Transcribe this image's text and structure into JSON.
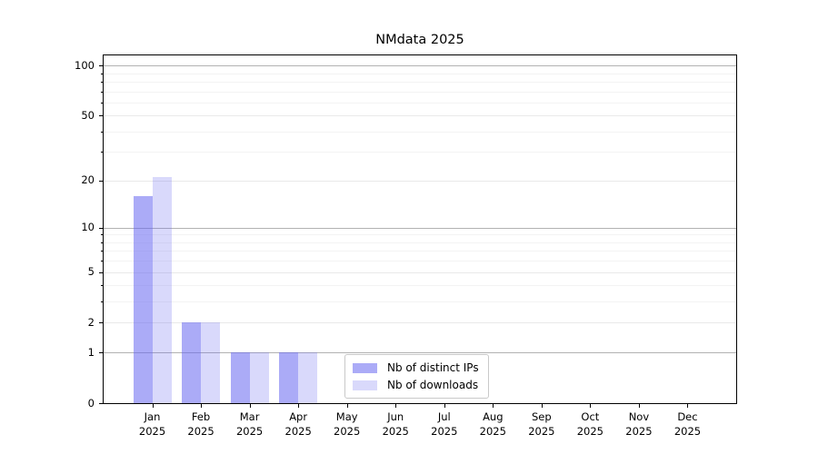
{
  "chart_data": {
    "type": "bar",
    "title": "NMdata 2025",
    "yscale": "log1p",
    "categories": [
      "Jan 2025",
      "Feb 2025",
      "Mar 2025",
      "Apr 2025",
      "May 2025",
      "Jun 2025",
      "Jul 2025",
      "Aug 2025",
      "Sep 2025",
      "Oct 2025",
      "Nov 2025",
      "Dec 2025"
    ],
    "month_labels": [
      "Jan",
      "Feb",
      "Mar",
      "Apr",
      "May",
      "Jun",
      "Jul",
      "Aug",
      "Sep",
      "Oct",
      "Nov",
      "Dec"
    ],
    "year_label": "2025",
    "series": [
      {
        "name": "Nb of distinct IPs",
        "color": "#abaBf1",
        "fill": "rgba(102,102,240,0.55)",
        "values": [
          16,
          2,
          1,
          1,
          0,
          0,
          0,
          0,
          0,
          0,
          0,
          0
        ]
      },
      {
        "name": "Nb of downloads",
        "color": "#d9d9f7",
        "fill": "rgba(102,102,240,0.25)",
        "values": [
          21,
          2,
          1,
          1,
          0,
          0,
          0,
          0,
          0,
          0,
          0,
          0
        ]
      }
    ],
    "y_ticks_labeled": [
      0,
      1,
      2,
      5,
      10,
      20,
      50,
      100
    ],
    "y_major_dark": [
      1,
      10,
      100
    ],
    "y_minor_ticks": [
      3,
      4,
      6,
      7,
      8,
      9,
      30,
      40,
      60,
      70,
      80,
      90
    ],
    "ylim": [
      0,
      115
    ],
    "grid": "horizontal-only",
    "legend_position": "lower-center"
  },
  "colors": {
    "background": "#ffffff",
    "spine": "#000000",
    "grid_major_dark": "#b2b2b2",
    "grid_major_light": "#e9e9e9",
    "grid_minor": "#f3f3f3",
    "legend_border": "#c9c9c9",
    "text": "#000000"
  }
}
